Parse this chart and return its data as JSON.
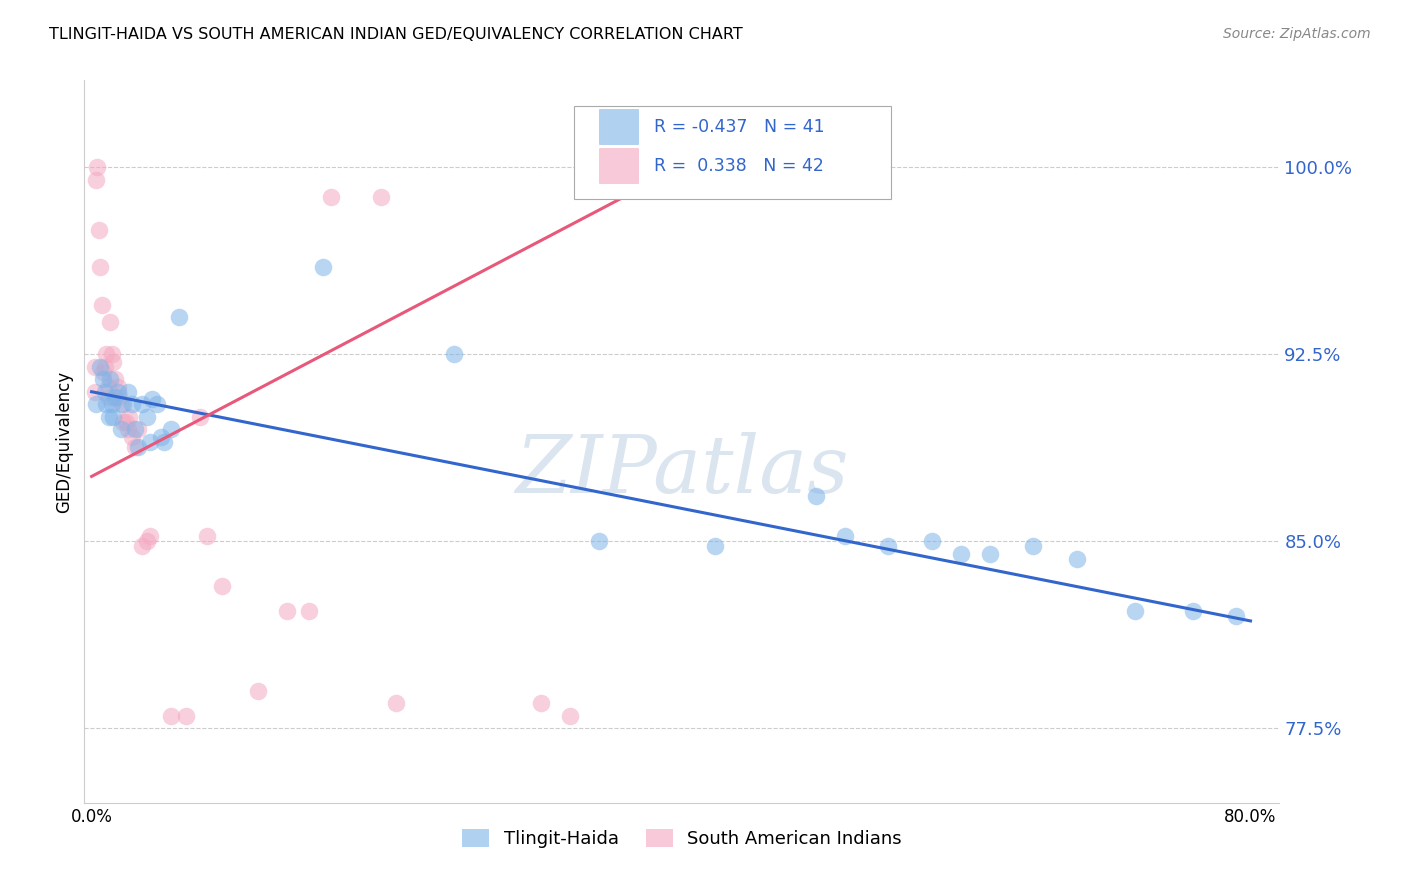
{
  "title": "TLINGIT-HAIDA VS SOUTH AMERICAN INDIAN GED/EQUIVALENCY CORRELATION CHART",
  "source": "Source: ZipAtlas.com",
  "ylabel": "GED/Equivalency",
  "watermark": "ZIPatlas",
  "blue_color": "#7EB3E8",
  "pink_color": "#F4A8C0",
  "blue_line_color": "#3366CC",
  "pink_line_color": "#E8587A",
  "ytick_positions": [
    0.775,
    0.85,
    0.925,
    1.0
  ],
  "ytick_labels": [
    "77.5%",
    "85.0%",
    "92.5%",
    "100.0%"
  ],
  "xlim": [
    0.0,
    0.8
  ],
  "ylim": [
    0.745,
    1.035
  ],
  "tlingit_x": [
    0.003,
    0.006,
    0.008,
    0.009,
    0.01,
    0.012,
    0.013,
    0.014,
    0.015,
    0.016,
    0.018,
    0.02,
    0.022,
    0.025,
    0.028,
    0.03,
    0.032,
    0.035,
    0.038,
    0.04,
    0.042,
    0.045,
    0.048,
    0.05,
    0.055,
    0.06,
    0.16,
    0.25,
    0.35,
    0.43,
    0.5,
    0.52,
    0.55,
    0.58,
    0.6,
    0.62,
    0.65,
    0.68,
    0.72,
    0.76,
    0.79
  ],
  "tlingit_y": [
    0.905,
    0.92,
    0.915,
    0.91,
    0.905,
    0.9,
    0.915,
    0.905,
    0.9,
    0.908,
    0.91,
    0.895,
    0.905,
    0.91,
    0.905,
    0.895,
    0.888,
    0.905,
    0.9,
    0.89,
    0.907,
    0.905,
    0.892,
    0.89,
    0.895,
    0.94,
    0.96,
    0.925,
    0.85,
    0.848,
    0.868,
    0.852,
    0.848,
    0.85,
    0.845,
    0.845,
    0.848,
    0.843,
    0.822,
    0.822,
    0.82
  ],
  "southam_x": [
    0.002,
    0.003,
    0.004,
    0.005,
    0.006,
    0.007,
    0.008,
    0.009,
    0.01,
    0.011,
    0.012,
    0.013,
    0.014,
    0.015,
    0.016,
    0.018,
    0.019,
    0.02,
    0.022,
    0.024,
    0.025,
    0.026,
    0.028,
    0.03,
    0.032,
    0.035,
    0.038,
    0.04,
    0.055,
    0.065,
    0.075,
    0.08,
    0.09,
    0.115,
    0.135,
    0.15,
    0.165,
    0.2,
    0.21,
    0.31,
    0.33,
    0.002
  ],
  "southam_y": [
    0.92,
    0.995,
    1.0,
    0.975,
    0.96,
    0.945,
    0.918,
    0.92,
    0.925,
    0.912,
    0.908,
    0.938,
    0.925,
    0.922,
    0.915,
    0.912,
    0.908,
    0.905,
    0.898,
    0.898,
    0.895,
    0.9,
    0.892,
    0.888,
    0.895,
    0.848,
    0.85,
    0.852,
    0.78,
    0.78,
    0.9,
    0.852,
    0.832,
    0.79,
    0.822,
    0.822,
    0.988,
    0.988,
    0.785,
    0.785,
    0.78,
    0.91
  ],
  "blue_trendline_x": [
    0.0,
    0.8
  ],
  "blue_trendline_y": [
    0.91,
    0.818
  ],
  "pink_trendline_x": [
    0.0,
    0.38
  ],
  "pink_trendline_y": [
    0.876,
    0.992
  ]
}
